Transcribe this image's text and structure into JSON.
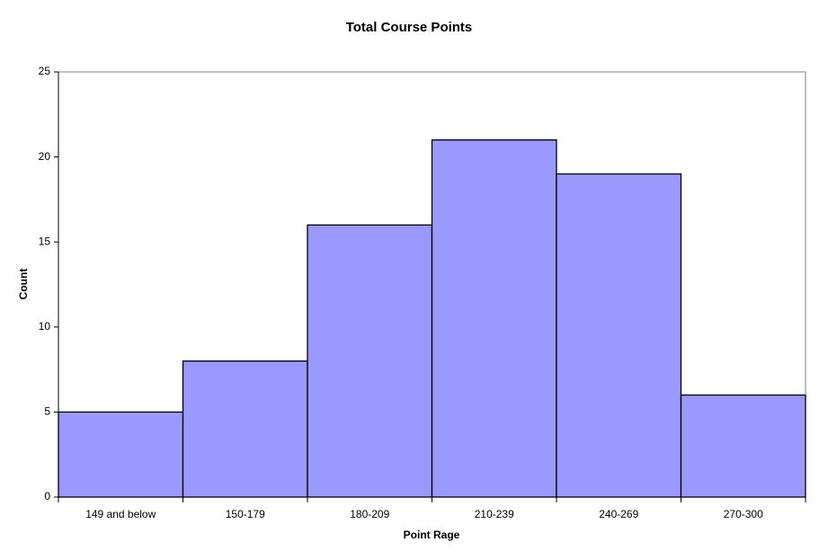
{
  "chart_data": {
    "type": "bar",
    "title": "Total Course Points",
    "x_label": "Point Rage",
    "y_label": "Count",
    "categories": [
      "149 and below",
      "150-179",
      "180-209",
      "210-239",
      "240-269",
      "270-300"
    ],
    "values": [
      5,
      8,
      16,
      21,
      19,
      6
    ],
    "color": "#9999ff",
    "ylim": [
      0,
      25
    ],
    "yticks": [
      0,
      5,
      10,
      15,
      20,
      25
    ],
    "grid": false
  }
}
